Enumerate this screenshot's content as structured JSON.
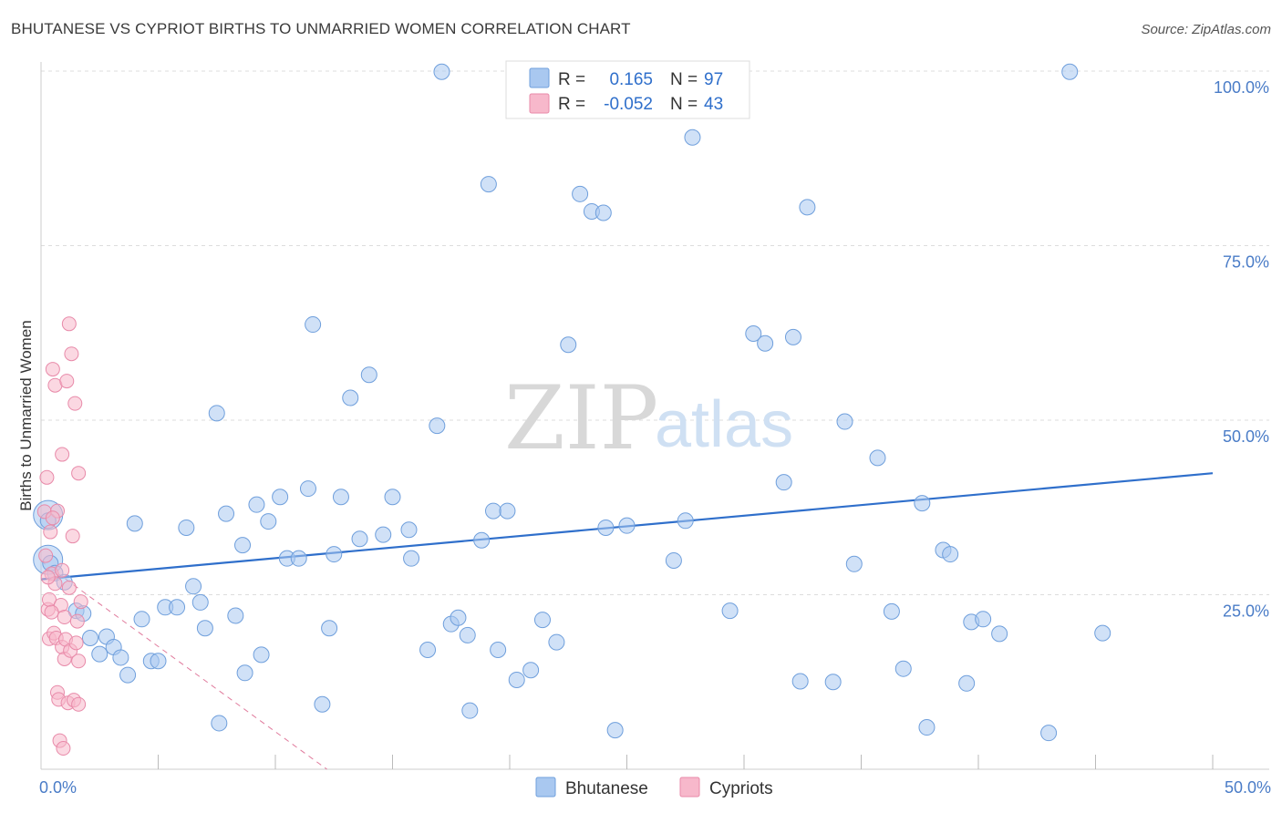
{
  "title": "BHUTANESE VS CYPRIOT BIRTHS TO UNMARRIED WOMEN CORRELATION CHART",
  "source": "Source: ZipAtlas.com",
  "colors": {
    "bhutanese_fill": "#a9c8f0",
    "bhutanese_stroke": "#6f9fdc",
    "bhutanese_line": "#2f6fcb",
    "cypriot_fill": "#f7b8cb",
    "cypriot_stroke": "#e88aa9",
    "cypriot_line": "#e07a9c",
    "tick_text": "#4a7cc7",
    "grid": "#dddddd"
  },
  "watermark": {
    "zip": "ZIP",
    "atlas": "atlas"
  },
  "legend": {
    "rows": [
      {
        "r_label": "R =",
        "r_value": "0.165",
        "n_label": "N =",
        "n_value": "97"
      },
      {
        "r_label": "R =",
        "r_value": "-0.052",
        "n_label": "N =",
        "n_value": "43"
      }
    ]
  },
  "chart_data": {
    "type": "scatter",
    "title": "BHUTANESE VS CYPRIOT BIRTHS TO UNMARRIED WOMEN CORRELATION CHART",
    "xlabel": "",
    "ylabel": "Births to Unmarried Women",
    "xlim": [
      0,
      50
    ],
    "ylim": [
      0,
      100
    ],
    "x_tick_labels": [
      {
        "value": 0,
        "label": "0.0%"
      },
      {
        "value": 50,
        "label": "50.0%"
      }
    ],
    "x_minor_ticks": [
      5,
      10,
      15,
      20,
      25,
      30,
      35,
      40,
      45,
      50
    ],
    "y_ticks": [
      {
        "value": 25,
        "label": "25.0%"
      },
      {
        "value": 50,
        "label": "50.0%"
      },
      {
        "value": 75,
        "label": "75.0%"
      },
      {
        "value": 100,
        "label": "100.0%"
      }
    ],
    "grid": true,
    "legend_position": "top-center",
    "series": [
      {
        "name": "Bhutanese",
        "R": 0.165,
        "N": 97,
        "trend": {
          "x": [
            0,
            50
          ],
          "y": [
            27.2,
            42.4
          ],
          "style": "solid"
        },
        "points": [
          [
            0.3,
            35.6
          ],
          [
            0.4,
            29.5
          ],
          [
            0.6,
            28.1
          ],
          [
            1.0,
            26.8
          ],
          [
            1.5,
            22.7
          ],
          [
            1.8,
            22.3
          ],
          [
            2.1,
            18.8
          ],
          [
            2.5,
            16.5
          ],
          [
            2.8,
            19.0
          ],
          [
            3.1,
            17.5
          ],
          [
            3.4,
            16.0
          ],
          [
            3.7,
            13.5
          ],
          [
            4.0,
            35.2
          ],
          [
            4.3,
            21.5
          ],
          [
            4.7,
            15.5
          ],
          [
            5.0,
            15.5
          ],
          [
            5.3,
            23.2
          ],
          [
            5.8,
            23.2
          ],
          [
            6.2,
            34.6
          ],
          [
            6.5,
            26.2
          ],
          [
            6.8,
            23.9
          ],
          [
            7.0,
            20.2
          ],
          [
            7.5,
            51.0
          ],
          [
            7.6,
            6.6
          ],
          [
            7.9,
            36.6
          ],
          [
            8.3,
            22.0
          ],
          [
            8.6,
            32.1
          ],
          [
            8.7,
            13.8
          ],
          [
            9.2,
            37.9
          ],
          [
            9.4,
            16.4
          ],
          [
            9.7,
            35.5
          ],
          [
            10.2,
            39.0
          ],
          [
            10.5,
            30.2
          ],
          [
            11.0,
            30.2
          ],
          [
            11.4,
            40.2
          ],
          [
            11.6,
            63.7
          ],
          [
            12.0,
            9.3
          ],
          [
            12.3,
            20.2
          ],
          [
            12.5,
            30.8
          ],
          [
            12.8,
            39.0
          ],
          [
            13.2,
            53.2
          ],
          [
            13.6,
            33.0
          ],
          [
            14.0,
            56.5
          ],
          [
            14.6,
            33.6
          ],
          [
            15.0,
            39.0
          ],
          [
            15.7,
            34.3
          ],
          [
            15.8,
            30.2
          ],
          [
            16.5,
            17.1
          ],
          [
            16.9,
            49.2
          ],
          [
            17.1,
            99.9
          ],
          [
            17.5,
            20.8
          ],
          [
            17.8,
            21.7
          ],
          [
            18.2,
            19.2
          ],
          [
            18.3,
            8.4
          ],
          [
            18.8,
            32.8
          ],
          [
            19.1,
            83.8
          ],
          [
            19.3,
            37.0
          ],
          [
            19.5,
            17.1
          ],
          [
            19.9,
            37.0
          ],
          [
            20.3,
            12.8
          ],
          [
            20.9,
            14.2
          ],
          [
            21.4,
            21.4
          ],
          [
            22.0,
            18.2
          ],
          [
            22.5,
            60.8
          ],
          [
            23.0,
            82.4
          ],
          [
            23.5,
            79.9
          ],
          [
            24.0,
            79.7
          ],
          [
            24.1,
            34.6
          ],
          [
            24.5,
            5.6
          ],
          [
            25.0,
            34.9
          ],
          [
            27.0,
            29.9
          ],
          [
            27.5,
            35.6
          ],
          [
            27.8,
            90.5
          ],
          [
            29.4,
            22.7
          ],
          [
            30.4,
            62.4
          ],
          [
            30.9,
            61.0
          ],
          [
            31.7,
            41.1
          ],
          [
            32.1,
            61.9
          ],
          [
            32.4,
            12.6
          ],
          [
            32.7,
            80.5
          ],
          [
            33.8,
            12.5
          ],
          [
            34.3,
            49.8
          ],
          [
            34.7,
            29.4
          ],
          [
            35.7,
            44.6
          ],
          [
            36.3,
            22.6
          ],
          [
            36.8,
            14.4
          ],
          [
            37.6,
            38.1
          ],
          [
            37.8,
            6.0
          ],
          [
            38.5,
            31.4
          ],
          [
            38.8,
            30.8
          ],
          [
            39.5,
            12.3
          ],
          [
            39.7,
            21.1
          ],
          [
            40.2,
            21.5
          ],
          [
            40.9,
            19.4
          ],
          [
            43.0,
            5.2
          ],
          [
            43.9,
            99.9
          ],
          [
            45.3,
            19.5
          ]
        ]
      },
      {
        "name": "Cypriots",
        "R": -0.052,
        "N": 43,
        "trend": {
          "x": [
            0,
            12.2
          ],
          "y": [
            29.8,
            0
          ],
          "style": "dashed"
        },
        "points": [
          [
            0.15,
            36.9
          ],
          [
            0.2,
            30.6
          ],
          [
            0.25,
            41.8
          ],
          [
            0.3,
            22.9
          ],
          [
            0.35,
            24.3
          ],
          [
            0.35,
            18.7
          ],
          [
            0.4,
            34.0
          ],
          [
            0.45,
            28.0
          ],
          [
            0.5,
            57.3
          ],
          [
            0.55,
            19.5
          ],
          [
            0.6,
            55.0
          ],
          [
            0.6,
            26.6
          ],
          [
            0.65,
            18.8
          ],
          [
            0.7,
            37.0
          ],
          [
            0.7,
            11.0
          ],
          [
            0.75,
            10.0
          ],
          [
            0.8,
            4.1
          ],
          [
            0.85,
            23.5
          ],
          [
            0.9,
            45.1
          ],
          [
            0.9,
            17.5
          ],
          [
            0.95,
            3.0
          ],
          [
            1.0,
            21.8
          ],
          [
            1.0,
            15.8
          ],
          [
            1.05,
            18.6
          ],
          [
            1.1,
            55.6
          ],
          [
            1.15,
            9.5
          ],
          [
            1.2,
            63.8
          ],
          [
            1.25,
            17.0
          ],
          [
            1.3,
            59.5
          ],
          [
            1.35,
            33.4
          ],
          [
            1.4,
            9.9
          ],
          [
            1.45,
            52.4
          ],
          [
            1.5,
            18.1
          ],
          [
            1.55,
            21.2
          ],
          [
            1.6,
            15.5
          ],
          [
            1.6,
            42.4
          ],
          [
            1.7,
            24.0
          ],
          [
            0.5,
            36.0
          ],
          [
            0.3,
            27.5
          ],
          [
            0.45,
            22.5
          ],
          [
            0.9,
            28.5
          ],
          [
            1.2,
            26.0
          ],
          [
            1.6,
            9.3
          ]
        ]
      }
    ],
    "large_markers": [
      {
        "series": "Bhutanese",
        "x": 0.3,
        "y": 36.4
      },
      {
        "series": "Bhutanese",
        "x": 0.3,
        "y": 30.0
      }
    ]
  }
}
